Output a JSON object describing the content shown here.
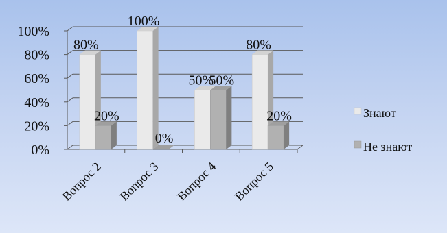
{
  "chart_data": {
    "type": "bar",
    "categories": [
      "Вопрос 2",
      "Вопрос 3",
      "Вопрос 4",
      "Вопрос 5"
    ],
    "series": [
      {
        "name": "Знают",
        "values": [
          80,
          100,
          50,
          80
        ],
        "labels": [
          "80%",
          "100%",
          "50%",
          "80%"
        ],
        "color": "#eaeaea"
      },
      {
        "name": "Не знают",
        "values": [
          20,
          0,
          50,
          20
        ],
        "labels": [
          "20%",
          "0%",
          "50%",
          "20%"
        ],
        "color": "#b1b1b1"
      }
    ],
    "y_ticks": [
      "0%",
      "20%",
      "40%",
      "60%",
      "80%",
      "100%"
    ],
    "ylim": [
      0,
      100
    ],
    "grid": true,
    "legend_position": "right",
    "style": "3d-clustered-column",
    "title": "",
    "xlabel": "",
    "ylabel": ""
  }
}
